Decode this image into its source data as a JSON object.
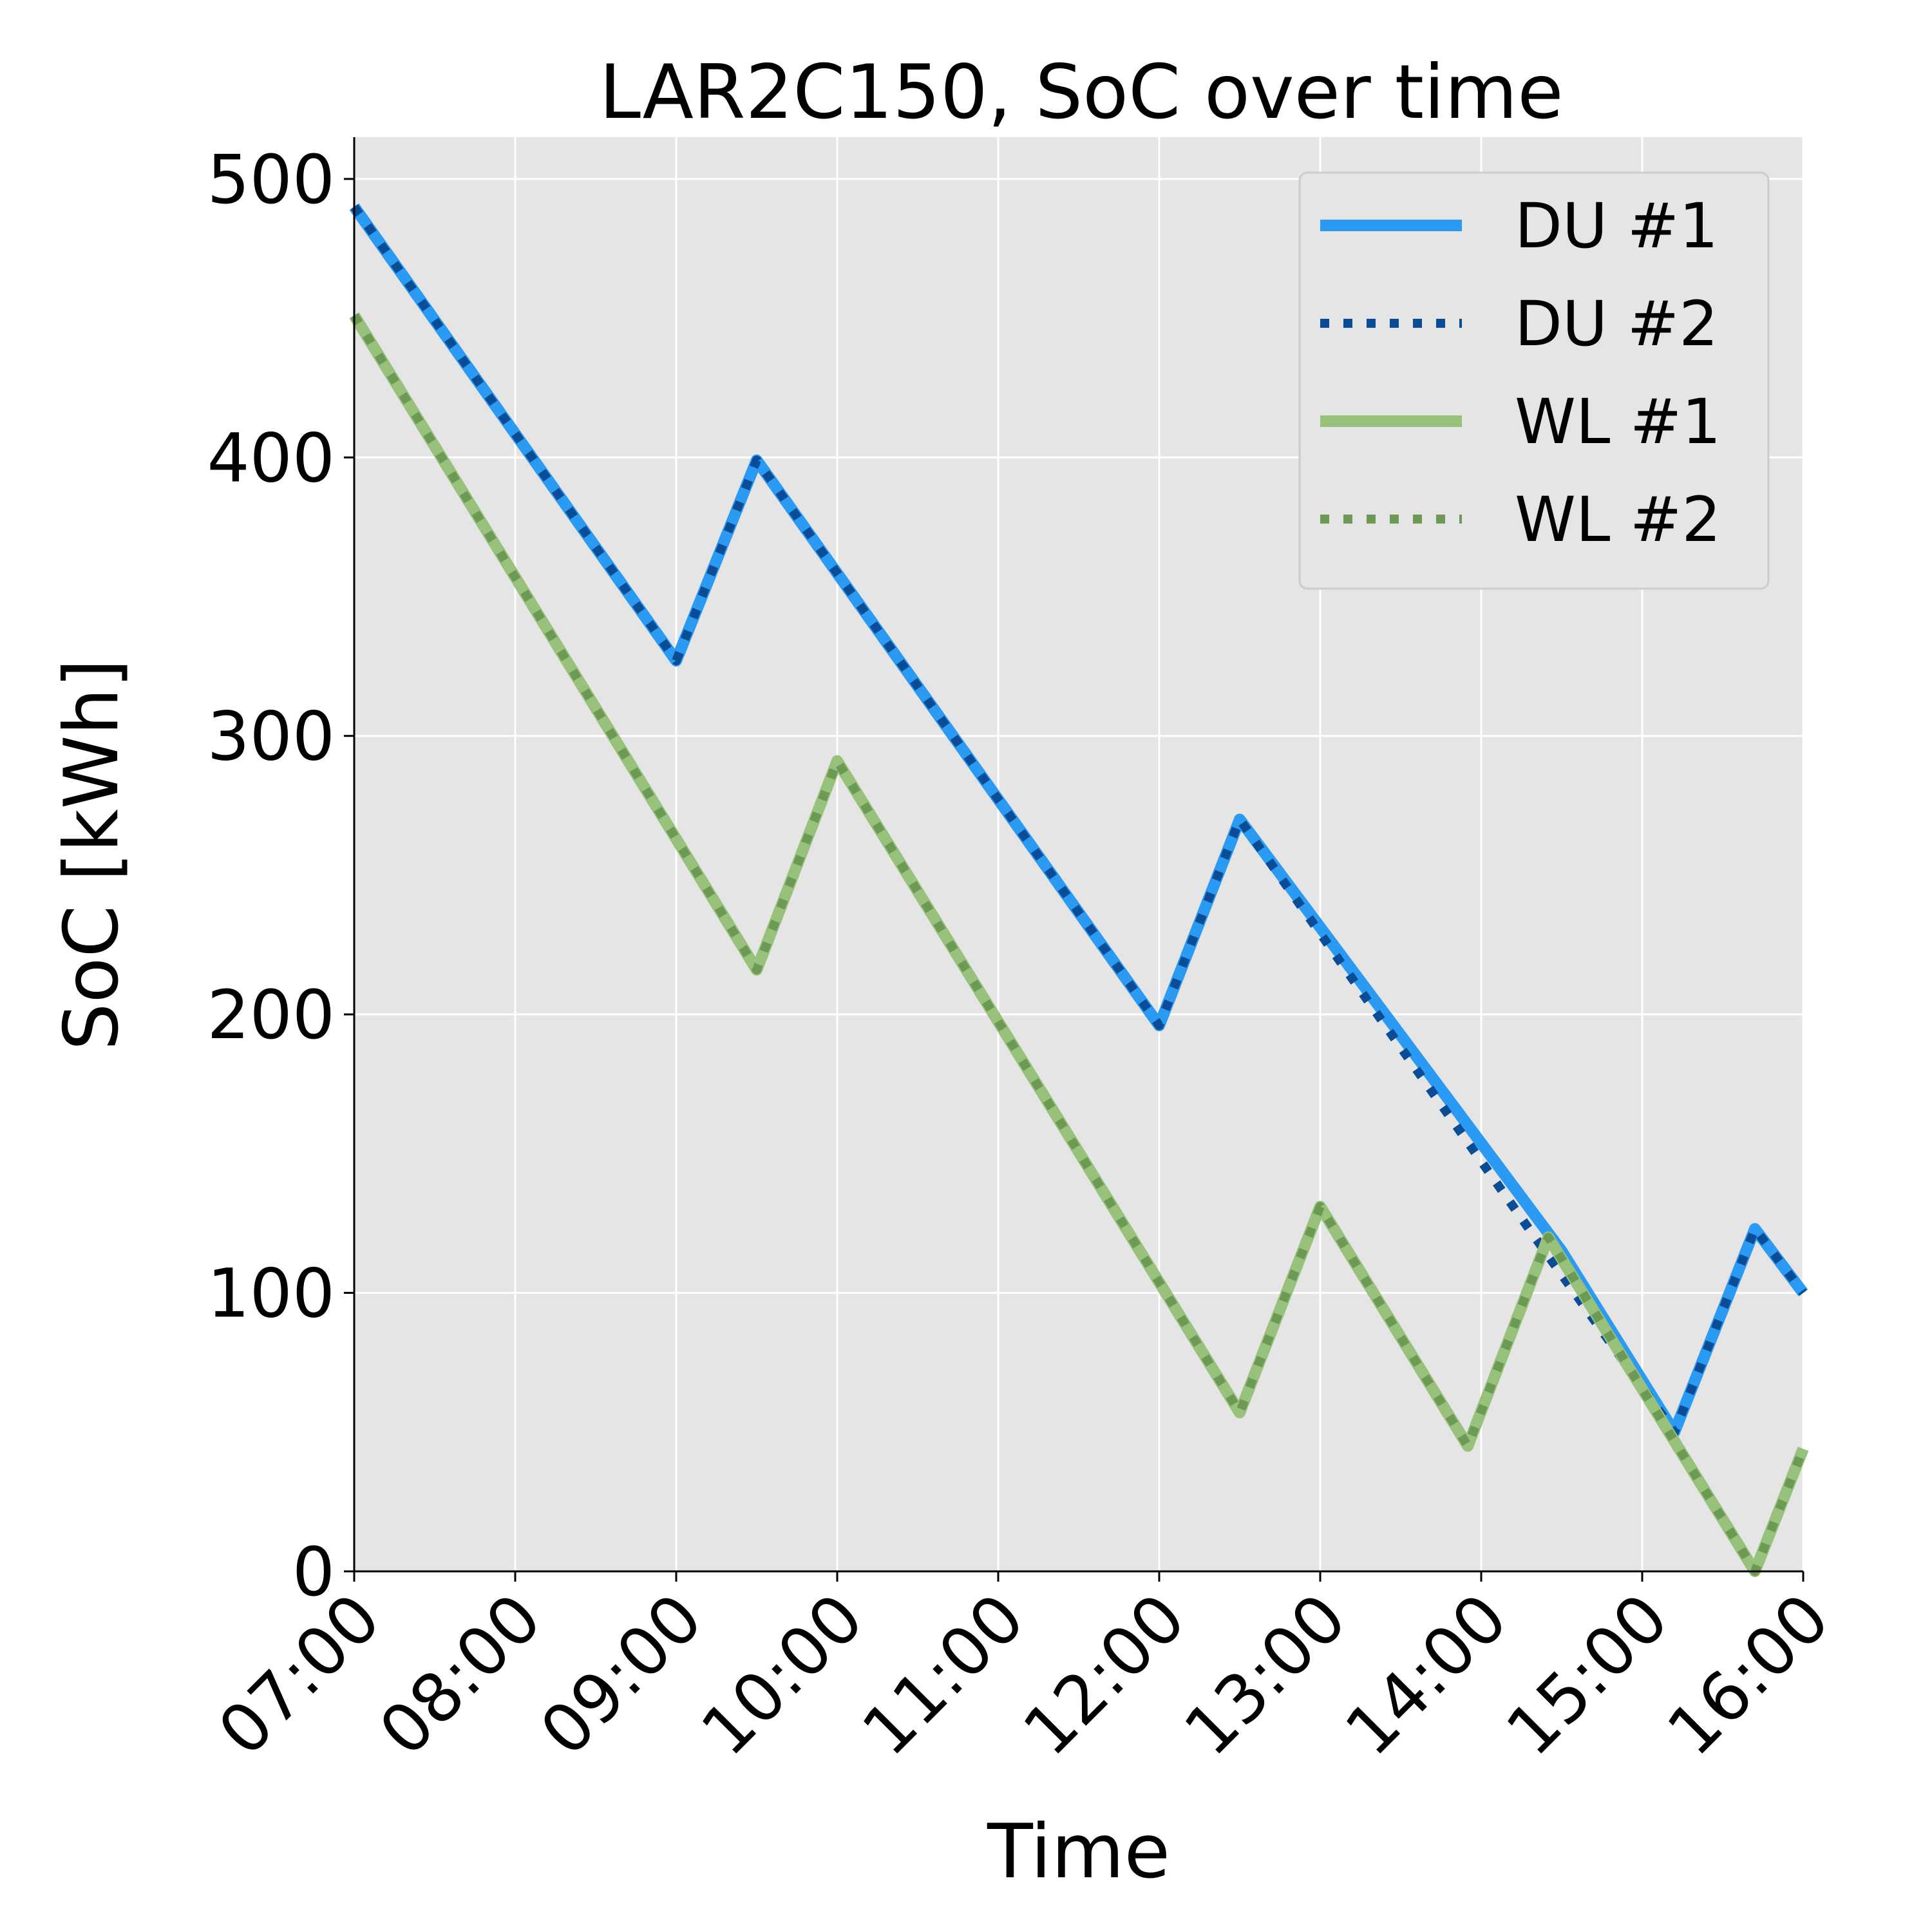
{
  "chart_data": {
    "type": "line",
    "title": "LAR2C150, SoC over time",
    "xlabel": "Time",
    "ylabel": "SoC [kWh]",
    "x_ticks": [
      "07:00",
      "08:00",
      "09:00",
      "10:00",
      "11:00",
      "12:00",
      "13:00",
      "14:00",
      "15:00",
      "16:00"
    ],
    "xlim": [
      "07:00",
      "16:00"
    ],
    "y_ticks": [
      0,
      100,
      200,
      300,
      400,
      500
    ],
    "ylim": [
      0,
      515
    ],
    "grid": true,
    "legend_position": "top-right",
    "series": [
      {
        "name": "DU #1",
        "style": "solid",
        "color": "#2B9AF2",
        "points": [
          [
            "07:00",
            490
          ],
          [
            "09:00",
            327
          ],
          [
            "09:30",
            399
          ],
          [
            "12:00",
            196
          ],
          [
            "12:30",
            270
          ],
          [
            "14:30",
            115
          ],
          [
            "15:12",
            50
          ],
          [
            "15:42",
            123
          ],
          [
            "16:00",
            100
          ]
        ]
      },
      {
        "name": "DU #2",
        "style": "dotted",
        "color": "#0A4C96",
        "points": [
          [
            "07:00",
            490
          ],
          [
            "09:00",
            327
          ],
          [
            "09:30",
            399
          ],
          [
            "12:00",
            196
          ],
          [
            "12:30",
            270
          ],
          [
            "14:20",
            120
          ],
          [
            "15:12",
            50
          ],
          [
            "15:42",
            123
          ],
          [
            "16:00",
            100
          ]
        ]
      },
      {
        "name": "WL #1",
        "style": "solid",
        "color": "#98C27B",
        "points": [
          [
            "07:00",
            451
          ],
          [
            "09:30",
            216
          ],
          [
            "10:00",
            291
          ],
          [
            "12:30",
            57
          ],
          [
            "13:00",
            131
          ],
          [
            "13:55",
            45
          ],
          [
            "14:25",
            120
          ],
          [
            "15:42",
            0
          ],
          [
            "16:00",
            44
          ]
        ]
      },
      {
        "name": "WL #2",
        "style": "dotted",
        "color": "#6C9A55",
        "points": [
          [
            "07:00",
            451
          ],
          [
            "09:30",
            216
          ],
          [
            "10:00",
            291
          ],
          [
            "12:30",
            57
          ],
          [
            "13:00",
            131
          ],
          [
            "13:55",
            45
          ],
          [
            "14:25",
            120
          ],
          [
            "15:42",
            0
          ],
          [
            "16:00",
            44
          ]
        ]
      }
    ]
  },
  "colors": {
    "plot_background": "#E5E5E5",
    "grid": "#FFFFFF",
    "axis": "#000000"
  }
}
